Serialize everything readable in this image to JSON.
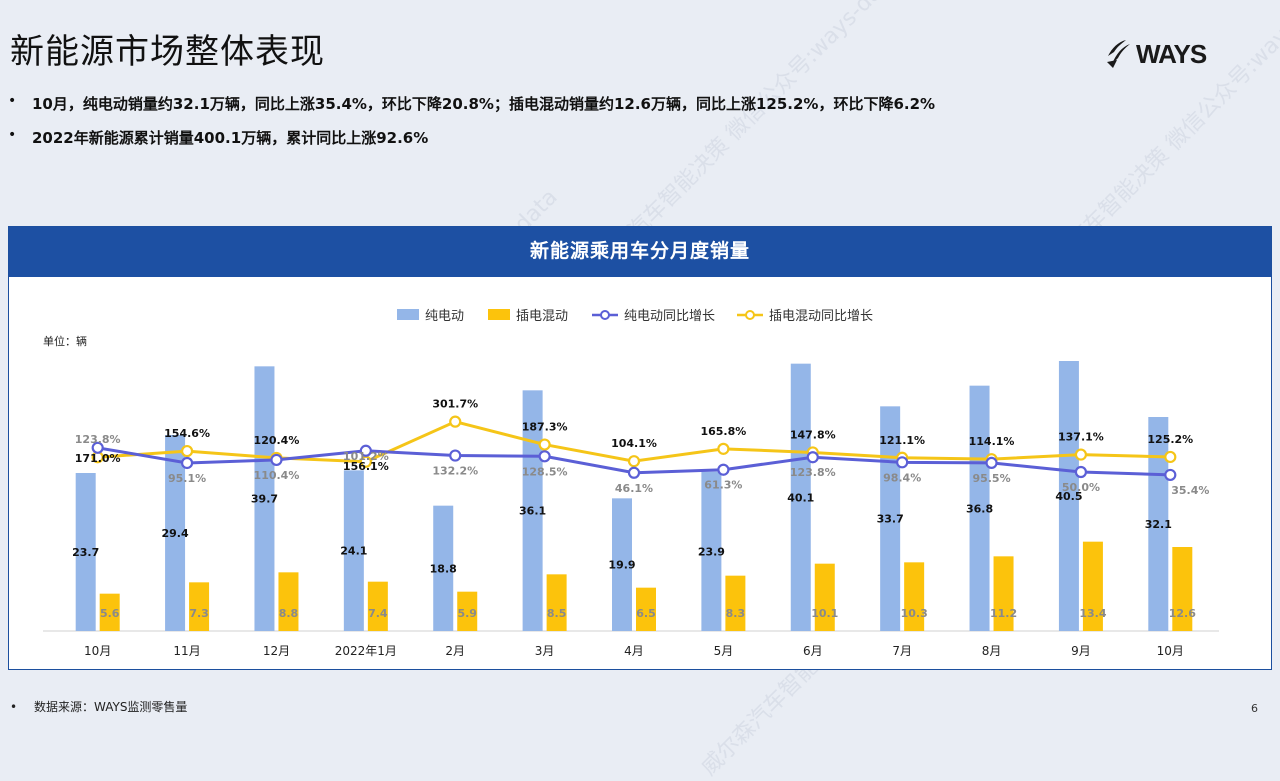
{
  "page": {
    "title": "新能源市场整体表现",
    "logo_text": "WAYS",
    "bullets": [
      "10月，纯电动销量约32.1万辆，同比上涨35.4%，环比下降20.8%；插电混动销量约12.6万辆，同比上涨125.2%，环比下降6.2%",
      "2022年新能源累计销量400.1万辆，累计同比上涨92.6%"
    ],
    "footer_source": "数据来源：WAYS监测零售量",
    "page_number": "6",
    "watermark": "威尔森汽车智能决策 微信公众号:ways-data"
  },
  "chart_data": {
    "type": "bar",
    "title": "新能源乘用车分月度销量",
    "unit_label": "单位：辆",
    "categories": [
      "10月",
      "11月",
      "12月",
      "2022年1月",
      "2月",
      "3月",
      "4月",
      "5月",
      "6月",
      "7月",
      "8月",
      "9月",
      "10月"
    ],
    "series": [
      {
        "name": "纯电动",
        "kind": "bar",
        "color": "#94b6e8",
        "values": [
          23.7,
          29.4,
          39.7,
          24.1,
          18.8,
          36.1,
          19.9,
          23.9,
          40.1,
          33.7,
          36.8,
          40.5,
          32.1
        ]
      },
      {
        "name": "插电混动",
        "kind": "bar",
        "color": "#fcc30c",
        "values": [
          5.6,
          7.3,
          8.8,
          7.4,
          5.9,
          8.5,
          6.5,
          8.3,
          10.1,
          10.3,
          11.2,
          13.4,
          12.6
        ]
      },
      {
        "name": "纯电动同比增长",
        "kind": "line",
        "color": "#5b5fd6",
        "values": [
          171.0,
          95.1,
          110.4,
          156.1,
          132.2,
          128.5,
          46.1,
          61.3,
          123.8,
          98.4,
          95.5,
          50.0,
          35.4
        ],
        "labels": [
          "171.0%",
          "95.1%",
          "110.4%",
          "156.1%",
          "132.2%",
          "128.5%",
          "46.1%",
          "61.3%",
          "123.8%",
          "98.4%",
          "95.5%",
          "50.0%",
          "35.4%"
        ]
      },
      {
        "name": "插电混动同比增长",
        "kind": "line",
        "color": "#f5c518",
        "values": [
          123.8,
          154.6,
          120.4,
          101.2,
          301.7,
          187.3,
          104.1,
          165.8,
          147.8,
          121.1,
          114.1,
          137.1,
          125.2
        ],
        "labels": [
          "123.8%",
          "154.6%",
          "120.4%",
          "101.2%",
          "301.7%",
          "187.3%",
          "104.1%",
          "165.8%",
          "147.8%",
          "121.1%",
          "114.1%",
          "137.1%",
          "125.2%"
        ]
      }
    ],
    "legend_position": "top",
    "grid": false
  }
}
